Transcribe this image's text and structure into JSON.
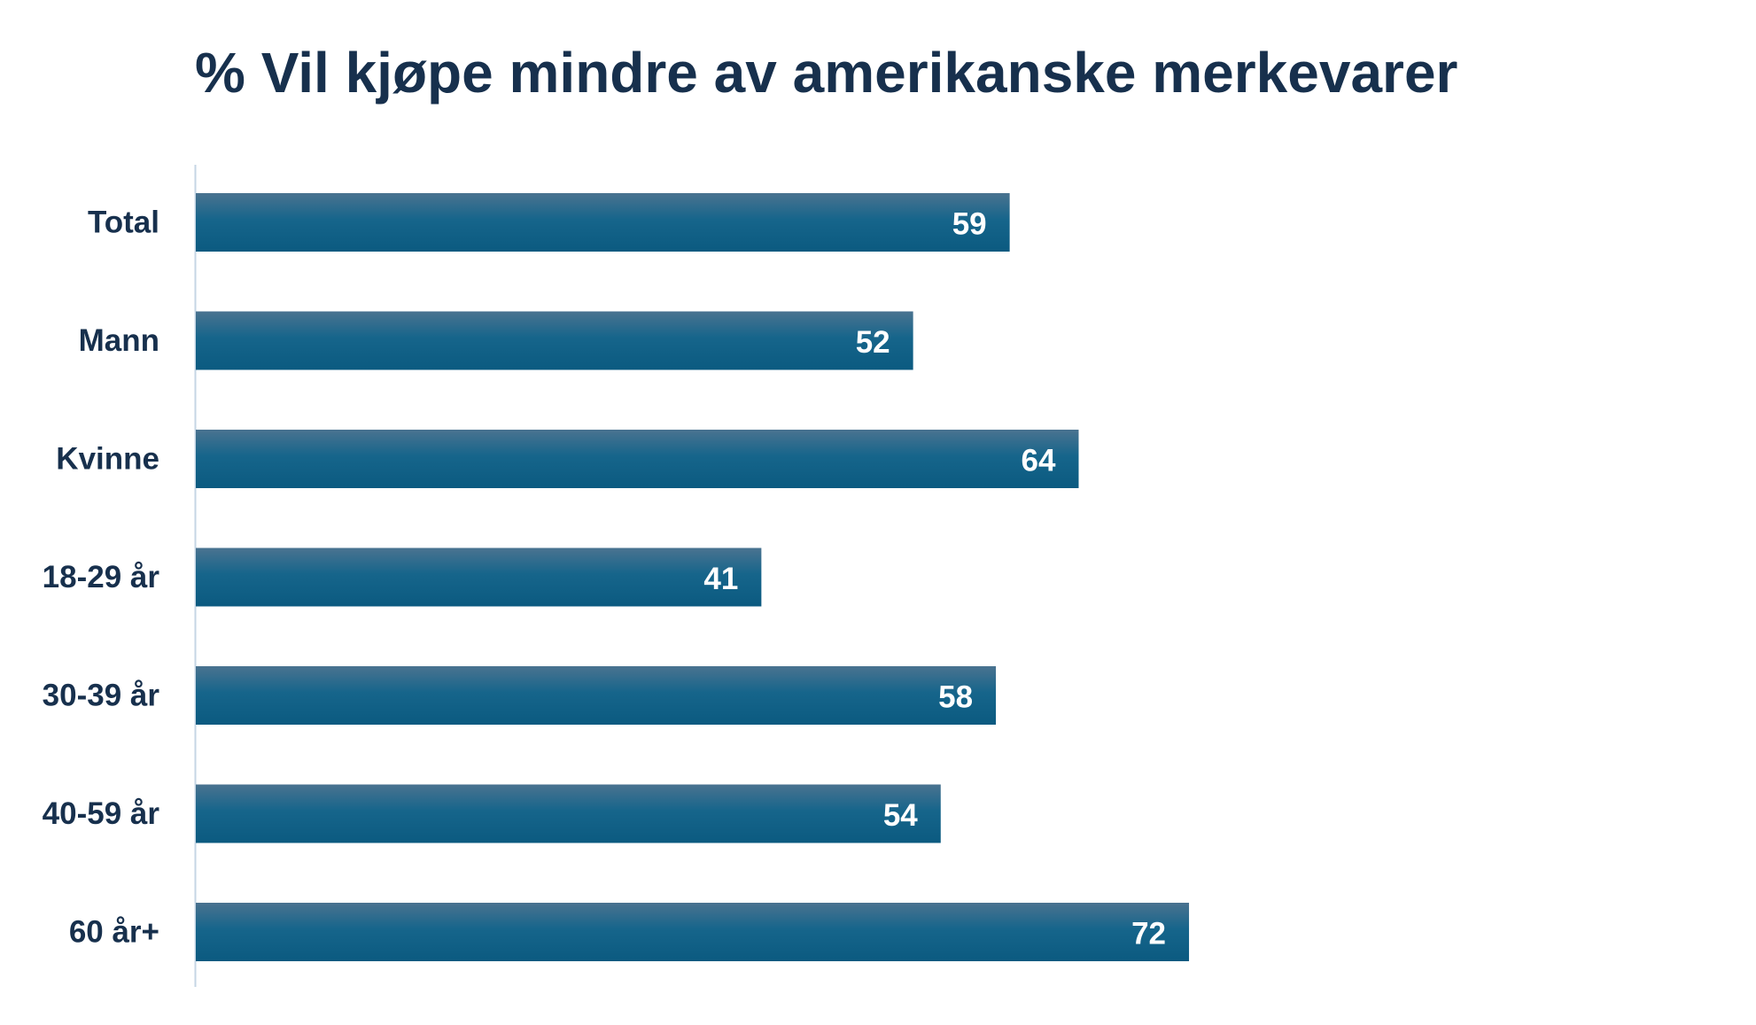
{
  "chart_data": {
    "type": "bar",
    "orientation": "horizontal",
    "title": "% Vil kjøpe mindre av amerikanske merkevarer",
    "categories": [
      "Total",
      "Mann",
      "Kvinne",
      "18-29 år",
      "30-39 år",
      "40-59 år",
      "60 år+"
    ],
    "values": [
      59,
      52,
      64,
      41,
      58,
      54,
      72
    ],
    "xlim": [
      0,
      100
    ],
    "grid": false,
    "legend": "none",
    "data_labels": true
  },
  "colors": {
    "bar_top": "#4a7390",
    "bar_bottom": "#0b5a80",
    "title": "#17304d",
    "category_label": "#17304d",
    "value_label": "#ffffff",
    "axis_line": "#c5d6e4"
  }
}
